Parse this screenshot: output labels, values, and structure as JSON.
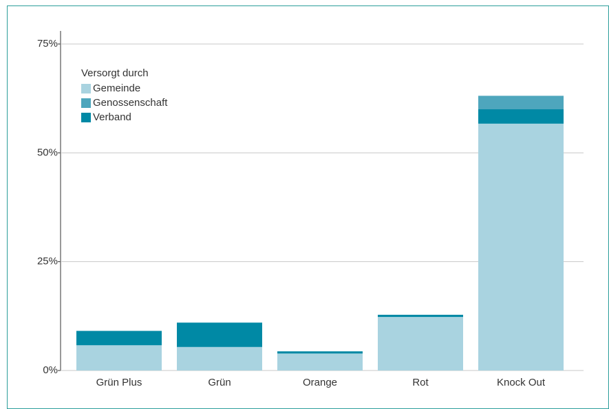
{
  "chart_data": {
    "type": "stacked-bar",
    "categories": [
      "Grün Plus",
      "Grün",
      "Orange",
      "Rot",
      "Knock Out"
    ],
    "series": [
      {
        "name": "Gemeinde",
        "color": "#a9d3e0",
        "values": [
          5.8,
          5.4,
          3.9,
          12.3,
          56.7
        ]
      },
      {
        "name": "Genossenschaft",
        "color": "#4ea6bd",
        "values": [
          0,
          0,
          0,
          0,
          3.1
        ]
      },
      {
        "name": "Verband",
        "color": "#0089a5",
        "values": [
          3.3,
          5.6,
          0.5,
          0.5,
          3.3
        ]
      }
    ],
    "legend_title": "Versorgt durch",
    "ylim": [
      0,
      78
    ],
    "yticks": [
      {
        "value": 0,
        "label": "0%"
      },
      {
        "value": 25,
        "label": "25%"
      },
      {
        "value": 50,
        "label": "50%"
      },
      {
        "value": 75,
        "label": "75%"
      }
    ],
    "grid": true
  }
}
